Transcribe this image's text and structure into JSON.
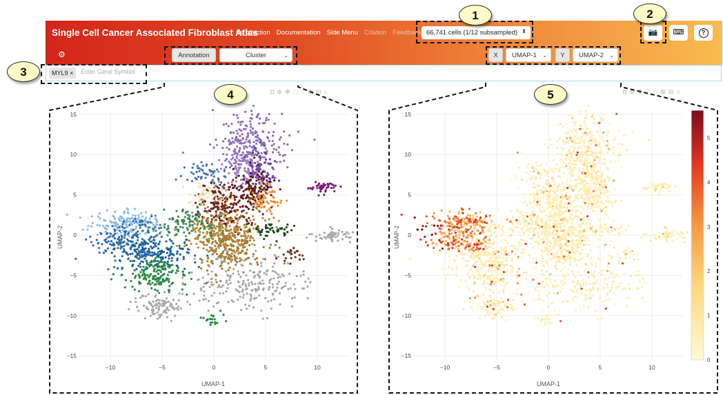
{
  "header": {
    "title": "Single Cell Cancer Associated Fibroblast Atlas",
    "nav": [
      "Introduction",
      "Documentation",
      "Side Menu",
      "Citation",
      "Feedback"
    ],
    "cells_select": "66,741 cells (1/12 subsampled)",
    "buttons": [
      "camera-icon",
      "keyboard-icon",
      "help-icon"
    ]
  },
  "toolbar": {
    "annotation_label": "Annotation",
    "annotation_value": "Cluster",
    "x_label": "X",
    "x_value": "UMAP-1",
    "y_label": "Y",
    "y_value": "UMAP-2"
  },
  "gene": {
    "tag": "MYL9 ×",
    "placeholder": "Enter Gene Symbol"
  },
  "callouts": [
    "1",
    "2",
    "3",
    "4",
    "5"
  ],
  "plots": {
    "xlabel": "UMAP-1",
    "ylabel": "UMAP-2",
    "xticks": [
      "−10",
      "−5",
      "0",
      "5",
      "10"
    ],
    "yticks": [
      "15",
      "10",
      "5",
      "0",
      "−5",
      "−10",
      "−15"
    ],
    "colorbar_ticks": [
      "5",
      "4",
      "3",
      "2",
      "1",
      "0"
    ]
  }
}
